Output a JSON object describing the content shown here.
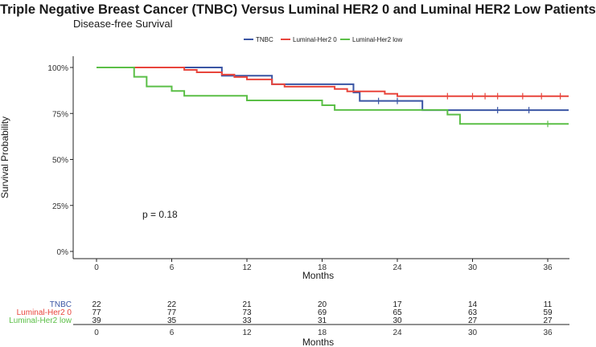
{
  "page_title": "Triple Negative Breast Cancer (TNBC) Versus Luminal HER2 0 and Luminal HER2 Low Patients",
  "chart_data": {
    "type": "line",
    "subtitle": "Disease-free Survival",
    "xlabel": "Months",
    "ylabel": "Survival Probability",
    "xlim": [
      -1.5,
      38
    ],
    "ylim": [
      -0.02,
      1.05
    ],
    "x_ticks": [
      0,
      6,
      12,
      18,
      24,
      30,
      36
    ],
    "y_ticks": [
      0,
      0.25,
      0.5,
      0.75,
      1.0
    ],
    "y_tick_labels": [
      "0%",
      "25%",
      "50%",
      "75%",
      "100%"
    ],
    "legend_position": "top",
    "annotation": "p = 0.18",
    "series": [
      {
        "name": "TNBC",
        "color": "#3a55a4",
        "steps": [
          [
            0,
            1.0
          ],
          [
            10,
            0.955
          ],
          [
            14,
            0.909
          ],
          [
            20.5,
            0.864
          ],
          [
            21,
            0.818
          ],
          [
            26,
            0.768
          ],
          [
            38,
            0.768
          ]
        ],
        "censor_x": [
          22.5,
          24,
          32,
          34.5
        ]
      },
      {
        "name": "Luminal-Her2 0",
        "color": "#e8453c",
        "steps": [
          [
            0,
            1.0
          ],
          [
            7,
            0.987
          ],
          [
            8,
            0.974
          ],
          [
            10,
            0.961
          ],
          [
            11,
            0.948
          ],
          [
            12,
            0.935
          ],
          [
            14,
            0.909
          ],
          [
            15,
            0.896
          ],
          [
            19,
            0.883
          ],
          [
            20,
            0.87
          ],
          [
            23,
            0.857
          ],
          [
            24,
            0.844
          ],
          [
            38,
            0.844
          ]
        ],
        "censor_x": [
          28,
          30,
          31,
          32,
          34,
          35.5,
          37
        ]
      },
      {
        "name": "Luminal-Her2 low",
        "color": "#5bbf47",
        "steps": [
          [
            0,
            1.0
          ],
          [
            3,
            0.949
          ],
          [
            4,
            0.897
          ],
          [
            6,
            0.872
          ],
          [
            7,
            0.846
          ],
          [
            12,
            0.821
          ],
          [
            18,
            0.795
          ],
          [
            19,
            0.769
          ],
          [
            28,
            0.744
          ],
          [
            29,
            0.693
          ],
          [
            38,
            0.693
          ]
        ],
        "censor_x": [
          36
        ]
      }
    ],
    "risk_table": {
      "xlabel": "Months",
      "times": [
        0,
        6,
        12,
        18,
        24,
        30,
        36
      ],
      "rows": [
        {
          "name": "TNBC",
          "color": "#3a55a4",
          "counts": [
            "22",
            "22",
            "21",
            "20",
            "17",
            "14",
            "11"
          ]
        },
        {
          "name": "Luminal-Her2 0",
          "color": "#e8453c",
          "counts": [
            "77",
            "77",
            "73",
            "69",
            "65",
            "63",
            "59"
          ]
        },
        {
          "name": "Luminal-Her2 low",
          "color": "#5bbf47",
          "counts": [
            "39",
            "35",
            "33",
            "31",
            "30",
            "27",
            "27"
          ]
        }
      ]
    }
  }
}
